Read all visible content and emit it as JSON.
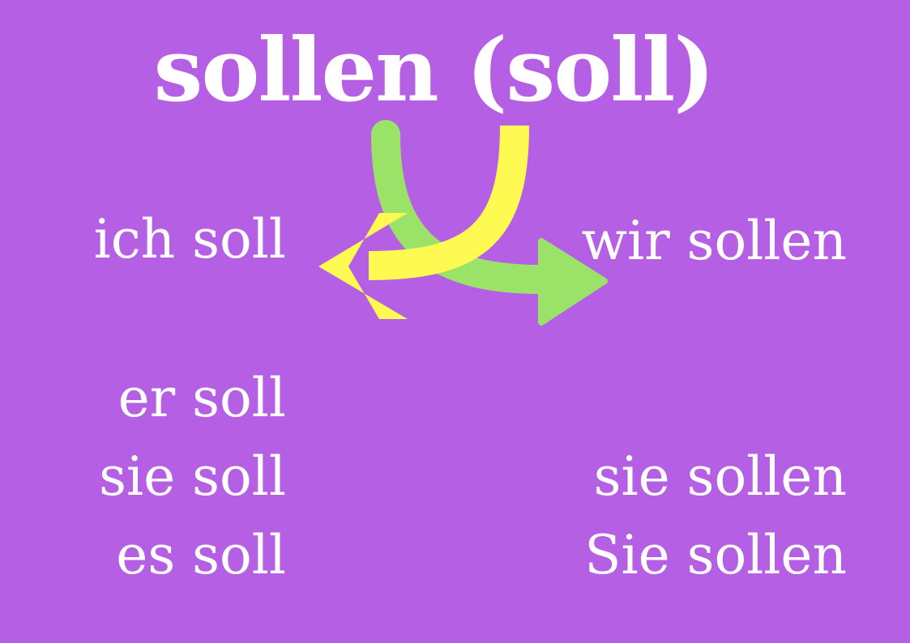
{
  "title": "sollen (soll)",
  "singular": {
    "ich": "ich soll",
    "er": "er soll",
    "sie": "sie soll",
    "es": "es soll"
  },
  "plural": {
    "wir": "wir sollen",
    "sie": "sie sollen",
    "Sie": "Sie sollen"
  },
  "colors": {
    "background": "#b560e4",
    "text": "#ffffff",
    "arrow_to_singular": "#fffa52",
    "arrow_to_plural": "#9be368"
  }
}
